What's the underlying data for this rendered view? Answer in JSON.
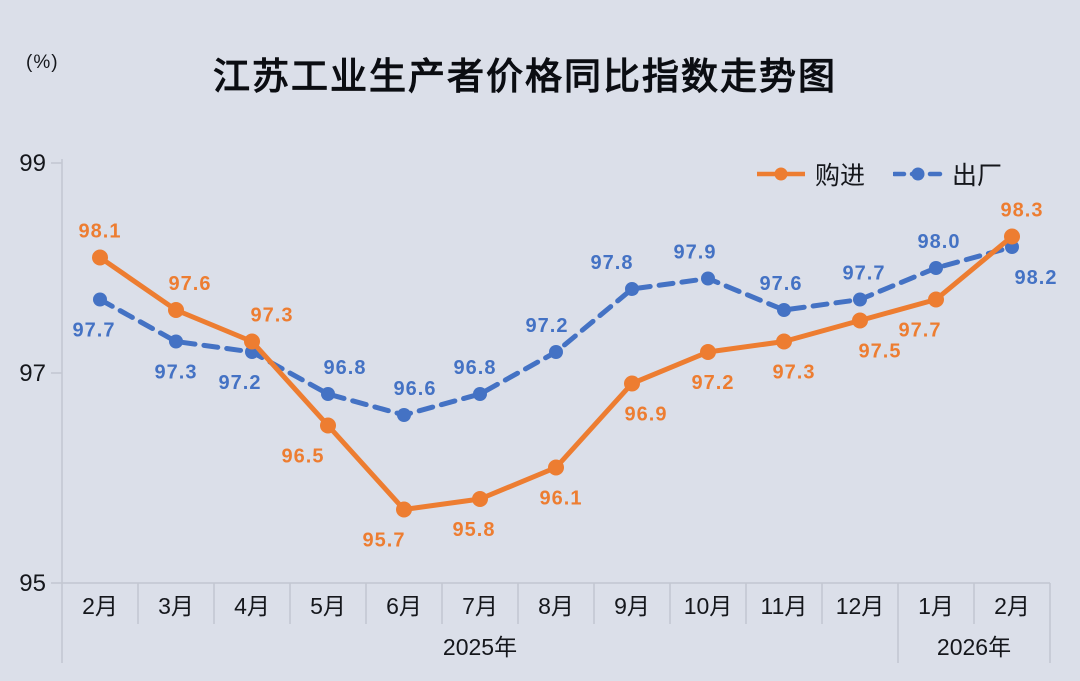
{
  "title": "江苏工业生产者价格同比指数走势图",
  "unit_label": "(%)",
  "colors": {
    "background": "#dbdfe9",
    "purchase_orange": "#ED7D31",
    "exfactory_blue": "#4472C4",
    "axis_gray": "#c2c6d1",
    "text_black": "#15171c"
  },
  "legend": {
    "purchase_label": "购进",
    "exfactory_label": "出厂"
  },
  "chart_data": {
    "type": "line",
    "title": "江苏工业生产者价格同比指数走势图",
    "ylabel": "(%)",
    "xlabel": "",
    "grid": false,
    "legend_position": "top-right",
    "ylim": [
      95,
      99
    ],
    "y_ticks": [
      99,
      97,
      95
    ],
    "categories": [
      "2月",
      "3月",
      "4月",
      "5月",
      "6月",
      "7月",
      "8月",
      "9月",
      "10月",
      "11月",
      "12月",
      "1月",
      "2月"
    ],
    "year_groups": [
      {
        "label": "2025年",
        "from": 0,
        "to": 10
      },
      {
        "label": "2026年",
        "from": 11,
        "to": 12
      }
    ],
    "series": [
      {
        "name": "购进",
        "color": "#ED7D31",
        "style": "solid",
        "values": [
          98.1,
          97.6,
          97.3,
          96.5,
          95.7,
          95.8,
          96.1,
          96.9,
          97.2,
          97.3,
          97.5,
          97.7,
          98.3
        ],
        "labels": [
          {
            "pos": "above",
            "dx": 0
          },
          {
            "pos": "above",
            "dx": 14
          },
          {
            "pos": "above",
            "dx": 20
          },
          {
            "pos": "below",
            "dx": -25
          },
          {
            "pos": "below",
            "dx": -20
          },
          {
            "pos": "below",
            "dx": -6
          },
          {
            "pos": "below",
            "dx": 5
          },
          {
            "pos": "below",
            "dx": 14
          },
          {
            "pos": "below",
            "dx": 5
          },
          {
            "pos": "below",
            "dx": 10
          },
          {
            "pos": "below",
            "dx": 20
          },
          {
            "pos": "below",
            "dx": -16
          },
          {
            "pos": "above",
            "dx": 10
          }
        ]
      },
      {
        "name": "出厂",
        "color": "#4472C4",
        "style": "dashed",
        "values": [
          97.7,
          97.3,
          97.2,
          96.8,
          96.6,
          96.8,
          97.2,
          97.8,
          97.9,
          97.6,
          97.7,
          98.0,
          98.2
        ],
        "labels": [
          {
            "pos": "below",
            "dx": -6
          },
          {
            "pos": "below",
            "dx": 0
          },
          {
            "pos": "below",
            "dx": -12
          },
          {
            "pos": "above",
            "dx": 17
          },
          {
            "pos": "above",
            "dx": 11
          },
          {
            "pos": "above",
            "dx": -5
          },
          {
            "pos": "above",
            "dx": -9
          },
          {
            "pos": "above",
            "dx": -20
          },
          {
            "pos": "above",
            "dx": -13
          },
          {
            "pos": "above",
            "dx": -3
          },
          {
            "pos": "above",
            "dx": 4
          },
          {
            "pos": "above",
            "dx": 3
          },
          {
            "pos": "below",
            "dx": 24
          }
        ]
      }
    ]
  }
}
